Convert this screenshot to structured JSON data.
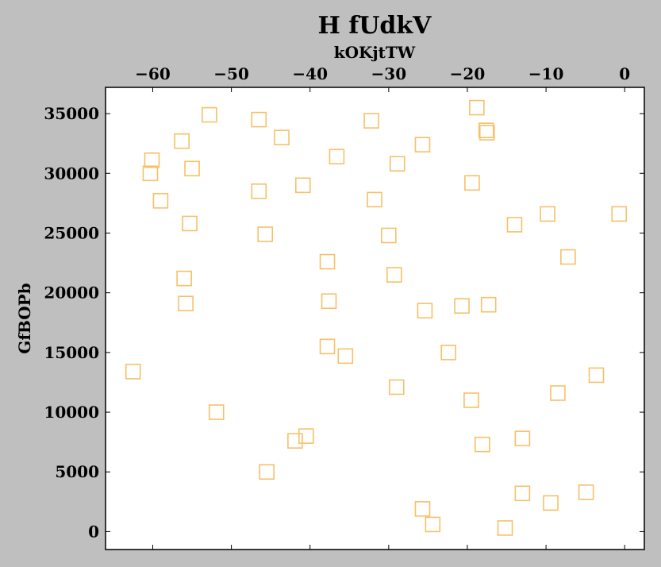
{
  "chart_data": {
    "type": "scatter",
    "title": "H fUdkV",
    "xlabel": "kOKjtTW",
    "ylabel": "GfBOPb",
    "x_axis_position": "top",
    "xlim": [
      -66,
      2.5
    ],
    "ylim": [
      -1500,
      37200
    ],
    "xticks": [
      -60,
      -50,
      -40,
      -30,
      -20,
      -10,
      0
    ],
    "xtick_labels": [
      "−60",
      "−50",
      "−40",
      "−30",
      "−20",
      "−10",
      "0"
    ],
    "yticks": [
      0,
      5000,
      10000,
      15000,
      20000,
      25000,
      30000,
      35000
    ],
    "ytick_labels": [
      "0",
      "5000",
      "10000",
      "15000",
      "20000",
      "25000",
      "30000",
      "35000"
    ],
    "grid": false,
    "marker": "square",
    "marker_fill": "none",
    "color": "#f6c068",
    "points": [
      {
        "x": -52.8,
        "y": 34900
      },
      {
        "x": -46.5,
        "y": 34500
      },
      {
        "x": -32.2,
        "y": 34400
      },
      {
        "x": -18.8,
        "y": 35500
      },
      {
        "x": -17.6,
        "y": 33600
      },
      {
        "x": -17.5,
        "y": 33400
      },
      {
        "x": -56.3,
        "y": 32700
      },
      {
        "x": -43.6,
        "y": 33000
      },
      {
        "x": -25.7,
        "y": 32400
      },
      {
        "x": -60.1,
        "y": 31100
      },
      {
        "x": -36.6,
        "y": 31400
      },
      {
        "x": -28.9,
        "y": 30800
      },
      {
        "x": -55.0,
        "y": 30400
      },
      {
        "x": -60.3,
        "y": 30000
      },
      {
        "x": -40.9,
        "y": 29000
      },
      {
        "x": -19.4,
        "y": 29200
      },
      {
        "x": -46.5,
        "y": 28500
      },
      {
        "x": -31.8,
        "y": 27800
      },
      {
        "x": -59.0,
        "y": 27700
      },
      {
        "x": -55.3,
        "y": 25800
      },
      {
        "x": -45.7,
        "y": 24900
      },
      {
        "x": -30.0,
        "y": 24800
      },
      {
        "x": -14.0,
        "y": 25700
      },
      {
        "x": -9.8,
        "y": 26600
      },
      {
        "x": -0.7,
        "y": 26600
      },
      {
        "x": -37.8,
        "y": 22600
      },
      {
        "x": -7.2,
        "y": 23000
      },
      {
        "x": -56.0,
        "y": 21200
      },
      {
        "x": -29.3,
        "y": 21500
      },
      {
        "x": -55.8,
        "y": 19100
      },
      {
        "x": -37.6,
        "y": 19300
      },
      {
        "x": -25.4,
        "y": 18500
      },
      {
        "x": -20.7,
        "y": 18900
      },
      {
        "x": -17.3,
        "y": 19000
      },
      {
        "x": -37.8,
        "y": 15500
      },
      {
        "x": -35.5,
        "y": 14700
      },
      {
        "x": -22.4,
        "y": 15000
      },
      {
        "x": -62.5,
        "y": 13400
      },
      {
        "x": -3.6,
        "y": 13100
      },
      {
        "x": -29.0,
        "y": 12100
      },
      {
        "x": -8.5,
        "y": 11600
      },
      {
        "x": -19.5,
        "y": 11000
      },
      {
        "x": -51.9,
        "y": 10000
      },
      {
        "x": -40.5,
        "y": 8000
      },
      {
        "x": -41.9,
        "y": 7600
      },
      {
        "x": -18.1,
        "y": 7300
      },
      {
        "x": -13.0,
        "y": 7800
      },
      {
        "x": -45.5,
        "y": 5000
      },
      {
        "x": -13.0,
        "y": 3200
      },
      {
        "x": -4.9,
        "y": 3300
      },
      {
        "x": -9.4,
        "y": 2400
      },
      {
        "x": -25.7,
        "y": 1900
      },
      {
        "x": -24.4,
        "y": 600
      },
      {
        "x": -15.2,
        "y": 300
      }
    ]
  }
}
